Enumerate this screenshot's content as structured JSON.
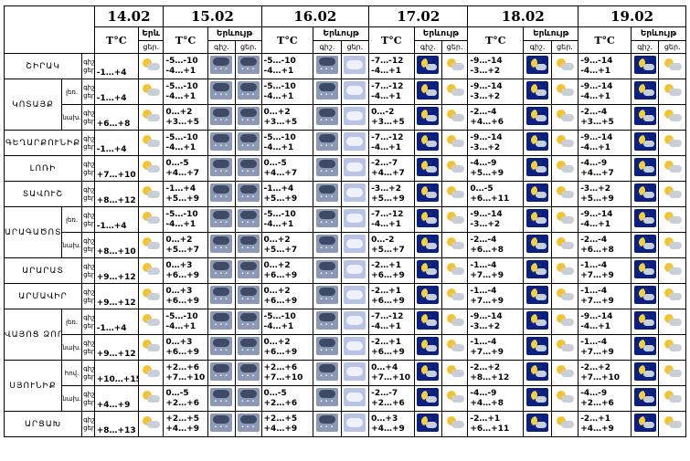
{
  "header": {
    "dates": [
      "14.02",
      "15.02",
      "16.02",
      "17.02",
      "18.02",
      "19.02"
    ],
    "temp_label": "T°C",
    "precip_label": "Երևույթ",
    "precip_label_short": "Երև",
    "day_label": "ցեր.",
    "night_label": "գիշ."
  },
  "regions": [
    {
      "name": "ՇԻՐԱԿ",
      "rows": [
        {
          "sub": "",
          "tags": [
            "գիշ.",
            "ցեր."
          ],
          "t14": "-1…+4",
          "i14": "sun",
          "days": [
            [
              "-5…-10",
              "-4…+1",
              "snow",
              "snow"
            ],
            [
              "-5…-10",
              "-4…+1",
              "snow",
              "cloud"
            ],
            [
              "-7…-12",
              "-4…+1",
              "moon",
              "sun"
            ],
            [
              "-9…-14",
              "-3…+2",
              "moon",
              "sun"
            ],
            [
              "-9…-14",
              "-4…+1",
              "moon",
              "sun"
            ]
          ]
        }
      ]
    },
    {
      "name": "ԿՈՏԱՅՔ",
      "rows": [
        {
          "sub": "լեռ.",
          "tags": [
            "գիշ.",
            "ցեր."
          ],
          "t14": "-1…+4",
          "i14": "sun",
          "days": [
            [
              "-5…-10",
              "-4…+1",
              "snow",
              "snow"
            ],
            [
              "-5…-10",
              "-4…+1",
              "snow",
              "cloud"
            ],
            [
              "-7…-12",
              "-4…+1",
              "moon",
              "sun"
            ],
            [
              "-9…-14",
              "-3…+2",
              "moon",
              "sun"
            ],
            [
              "-9…-14",
              "-4…+1",
              "moon",
              "sun"
            ]
          ]
        },
        {
          "sub": "նախ.",
          "tags": [
            "գիշ.",
            "ցեր."
          ],
          "t14": "+6…+8",
          "i14": "sun",
          "days": [
            [
              "0…+2",
              "+3…+5",
              "snow",
              "snow"
            ],
            [
              "0…+2",
              "+3…+5",
              "snow",
              "cloud"
            ],
            [
              "0…-2",
              "+3…+5",
              "moon",
              "sun"
            ],
            [
              "-2…-4",
              "+4…+6",
              "moon",
              "sun"
            ],
            [
              "-2…-4",
              "+3…+5",
              "moon",
              "sun"
            ]
          ]
        }
      ]
    },
    {
      "name": "ԳԵՂԱՐՔՈՒՆԻՔ",
      "rows": [
        {
          "sub": "",
          "tags": [
            "գիշ.",
            "ցեր."
          ],
          "t14": "-1…+4",
          "i14": "sun",
          "days": [
            [
              "-5…-10",
              "-4…+1",
              "snow",
              "snow"
            ],
            [
              "-5…-10",
              "-4…+1",
              "snow",
              "cloud"
            ],
            [
              "-7…-12",
              "-4…+1",
              "moon",
              "sun"
            ],
            [
              "-9…-14",
              "-3…+2",
              "moon",
              "sun"
            ],
            [
              "-9…-14",
              "-4…+1",
              "moon",
              "sun"
            ]
          ]
        }
      ]
    },
    {
      "name": "ԼՈՌԻ",
      "rows": [
        {
          "sub": "",
          "tags": [
            "գիշ.",
            "ցեր."
          ],
          "t14": "+7…+10",
          "i14": "sun",
          "days": [
            [
              "0…-5",
              "+4…+7",
              "snow",
              "snow"
            ],
            [
              "0…-5",
              "+4…+7",
              "snow",
              "cloud"
            ],
            [
              "-2…-7",
              "+4…+7",
              "moon",
              "sun"
            ],
            [
              "-4…-9",
              "+5…+9",
              "moon",
              "sun"
            ],
            [
              "-4…-9",
              "+4…+7",
              "moon",
              "sun"
            ]
          ]
        }
      ]
    },
    {
      "name": "ՏԱՎՈՒՇ",
      "rows": [
        {
          "sub": "",
          "tags": [
            "գիշ.",
            "ցեր."
          ],
          "t14": "+8…+12",
          "i14": "sun",
          "days": [
            [
              "-1…+4",
              "+5…+9",
              "snow",
              "snow"
            ],
            [
              "-1…+4",
              "+5…+9",
              "snow",
              "cloud"
            ],
            [
              "-3…+2",
              "+5…+9",
              "moon",
              "sun"
            ],
            [
              "0…-5",
              "+6…+11",
              "moon",
              "sun"
            ],
            [
              "-3…+2",
              "+5…+9",
              "moon",
              "sun"
            ]
          ]
        }
      ]
    },
    {
      "name": "ԱՐԱԳԱԾՈՏՆ",
      "rows": [
        {
          "sub": "լեռ.",
          "tags": [
            "գիշ.",
            "ցեր."
          ],
          "t14": "-1…+4",
          "i14": "sun",
          "days": [
            [
              "-5…-10",
              "-4…+1",
              "snow",
              "snow"
            ],
            [
              "-5…-10",
              "-4…+1",
              "snow",
              "cloud"
            ],
            [
              "-7…-12",
              "-4…+1",
              "moon",
              "sun"
            ],
            [
              "-9…-14",
              "-3…+2",
              "moon",
              "sun"
            ],
            [
              "-9…-14",
              "-4…+1",
              "moon",
              "sun"
            ]
          ]
        },
        {
          "sub": "նախ.",
          "tags": [
            "գիշ.",
            "ցեր."
          ],
          "t14": "+8…+10",
          "i14": "sun",
          "days": [
            [
              "0…+2",
              "+5…+7",
              "snow",
              "snow"
            ],
            [
              "0…+2",
              "+5…+7",
              "snow",
              "cloud"
            ],
            [
              "0…-2",
              "+5…+7",
              "moon",
              "sun"
            ],
            [
              "-2…-4",
              "+6…+8",
              "moon",
              "sun"
            ],
            [
              "-2…-4",
              "+6…+8",
              "moon",
              "sun"
            ]
          ]
        }
      ]
    },
    {
      "name": "ԱՐԱՐԱՏ",
      "rows": [
        {
          "sub": "",
          "tags": [
            "գիշ.",
            "ցեր."
          ],
          "t14": "+9…+12",
          "i14": "sun",
          "days": [
            [
              "0…+3",
              "+6…+9",
              "snow",
              "snow"
            ],
            [
              "0…+2",
              "+6…+9",
              "snow",
              "cloud"
            ],
            [
              "-2…+1",
              "+6…+9",
              "moon",
              "sun"
            ],
            [
              "-1…-4",
              "+7…+9",
              "moon",
              "sun"
            ],
            [
              "-1…-4",
              "+7…+9",
              "moon",
              "sun"
            ]
          ]
        }
      ]
    },
    {
      "name": "ԱՐՄԱՎԻՐ",
      "rows": [
        {
          "sub": "",
          "tags": [
            "գիշ.",
            "ցեր."
          ],
          "t14": "+9…+12",
          "i14": "sun",
          "days": [
            [
              "0…+3",
              "+6…+9",
              "snow",
              "snow"
            ],
            [
              "0…+2",
              "+6…+9",
              "snow",
              "cloud"
            ],
            [
              "-2…+1",
              "+6…+9",
              "moon",
              "sun"
            ],
            [
              "-1…-4",
              "+7…+9",
              "moon",
              "sun"
            ],
            [
              "-1…-4",
              "+7…+9",
              "moon",
              "sun"
            ]
          ]
        }
      ]
    },
    {
      "name": "ՎԱՅՈՑ ՁՈՐ",
      "rows": [
        {
          "sub": "լեռ.",
          "tags": [
            "գիշ.",
            "ցեր."
          ],
          "t14": "-1…+4",
          "i14": "sun",
          "days": [
            [
              "-5…-10",
              "-4…+1",
              "snow",
              "snow"
            ],
            [
              "-5…-10",
              "-4…+1",
              "snow",
              "cloud"
            ],
            [
              "-7…-12",
              "-4…+1",
              "moon",
              "sun"
            ],
            [
              "-9…-14",
              "-3…+2",
              "moon",
              "sun"
            ],
            [
              "-9…-14",
              "-4…+1",
              "moon",
              "sun"
            ]
          ]
        },
        {
          "sub": "նախ.",
          "tags": [
            "գիշ.",
            "ցեր."
          ],
          "t14": "+9…+12",
          "i14": "sun",
          "days": [
            [
              "0…+3",
              "+6…+9",
              "snow",
              "snow"
            ],
            [
              "0…+2",
              "+6…+9",
              "snow",
              "cloud"
            ],
            [
              "-2…+1",
              "+6…+9",
              "moon",
              "sun"
            ],
            [
              "-1…-4",
              "+7…+9",
              "moon",
              "sun"
            ],
            [
              "-1…-4",
              "+7…+9",
              "moon",
              "sun"
            ]
          ]
        }
      ]
    },
    {
      "name": "ՍՅՈՒՆԻՔ",
      "rows": [
        {
          "sub": "հով.",
          "tags": [
            "գիշ.",
            "ցեր."
          ],
          "t14": "+10…+15",
          "i14": "sun",
          "days": [
            [
              "+2…+6",
              "+7…+10",
              "snow",
              "snow"
            ],
            [
              "+2…+6",
              "+7…+10",
              "snow",
              "cloud"
            ],
            [
              "0…+4",
              "+7…+10",
              "moon",
              "sun"
            ],
            [
              "-2…+2",
              "+8…+12",
              "moon",
              "sun"
            ],
            [
              "-2…+2",
              "+7…+10",
              "moon",
              "sun"
            ]
          ]
        },
        {
          "sub": "նախ.",
          "tags": [
            "գիշ.",
            "ցեր."
          ],
          "t14": "+4…+9",
          "i14": "sun",
          "days": [
            [
              "0…-5",
              "+2…+6",
              "snow",
              "snow"
            ],
            [
              "0…-5",
              "+2…+6",
              "snow",
              "cloud"
            ],
            [
              "-2…-7",
              "+2…+6",
              "moon",
              "sun"
            ],
            [
              "-4…-9",
              "+4…+8",
              "moon",
              "sun"
            ],
            [
              "-4…-9",
              "+2…+6",
              "moon",
              "sun"
            ]
          ]
        }
      ]
    },
    {
      "name": "ԱՐՑԱԽ",
      "rows": [
        {
          "sub": "",
          "tags": [
            "գիշ.",
            "ցեր."
          ],
          "t14": "+8…+13",
          "i14": "sun",
          "days": [
            [
              "+2…+5",
              "+4…+9",
              "snow",
              "snow"
            ],
            [
              "+2…+5",
              "+4…+9",
              "snow",
              "cloud"
            ],
            [
              "0…+3",
              "+4…+9",
              "moon",
              "sun"
            ],
            [
              "-2…+1",
              "+6…+11",
              "moon",
              "sun"
            ],
            [
              "-2…+1",
              "+4…+9",
              "moon",
              "sun"
            ]
          ]
        }
      ]
    }
  ]
}
